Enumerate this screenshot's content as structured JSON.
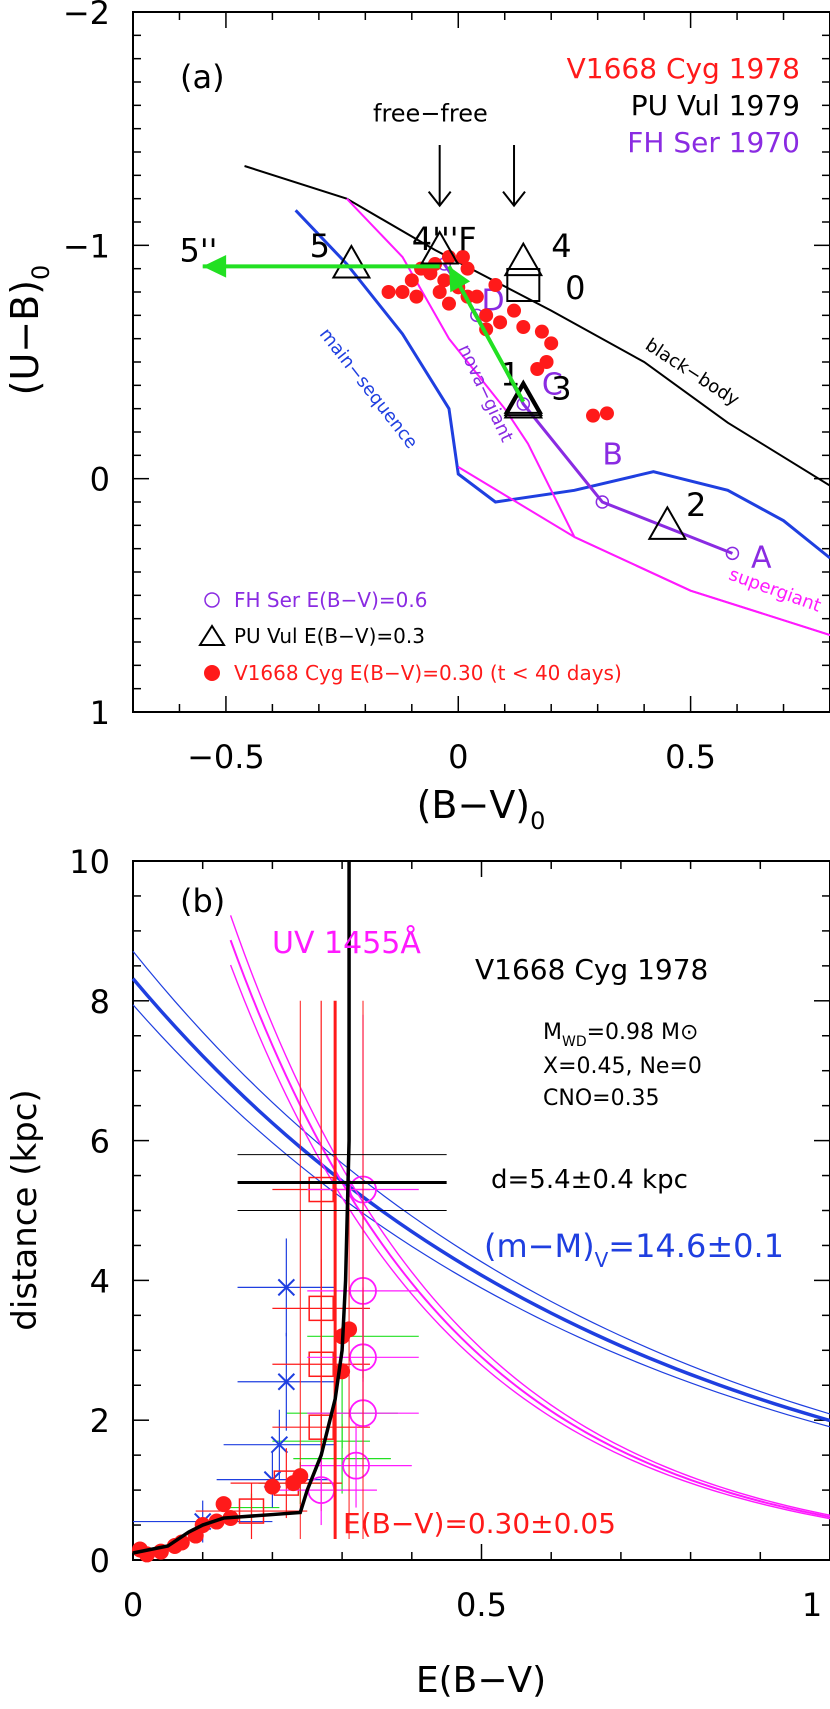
{
  "chart_data": [
    {
      "panel": "(a)",
      "type": "scatter",
      "xlabel": "(B−V)",
      "xlabel_sub": "0",
      "ylabel": "(U−B)",
      "ylabel_sub": "0",
      "xlim": [
        -0.7,
        0.8
      ],
      "ylim": [
        1,
        -2
      ],
      "xticks": [
        -0.5,
        0,
        0.5
      ],
      "xtick_labels": [
        "−0.5",
        "0",
        "0.5"
      ],
      "yticks": [
        -2,
        -1,
        0,
        1
      ],
      "ytick_labels": [
        "−2",
        "−1",
        "0",
        "1"
      ],
      "titles": [
        {
          "text": "V1668 Cyg 1978",
          "color": "#ff1a1a"
        },
        {
          "text": "PU Vul 1979",
          "color": "#000000"
        },
        {
          "text": "FH Ser 1970",
          "color": "#8a2be2"
        }
      ],
      "curves": [
        {
          "label": "black−body",
          "color": "#000000",
          "points": [
            [
              -0.46,
              -1.34
            ],
            [
              -0.24,
              -1.2
            ],
            [
              -0.05,
              -0.98
            ],
            [
              0.2,
              -0.72
            ],
            [
              0.4,
              -0.5
            ],
            [
              0.58,
              -0.24
            ],
            [
              0.8,
              0.03
            ]
          ]
        },
        {
          "label": "main−sequence",
          "color": "#1f3fe0",
          "points": [
            [
              -0.35,
              -1.15
            ],
            [
              -0.24,
              -0.92
            ],
            [
              -0.12,
              -0.62
            ],
            [
              -0.02,
              -0.3
            ],
            [
              0.0,
              -0.02
            ],
            [
              0.08,
              0.1
            ],
            [
              0.25,
              0.05
            ],
            [
              0.42,
              -0.03
            ],
            [
              0.58,
              0.05
            ],
            [
              0.7,
              0.18
            ],
            [
              0.8,
              0.34
            ]
          ]
        },
        {
          "label": "nova−giant",
          "color": "#ff1aff",
          "points": [
            [
              -0.24,
              -1.2
            ],
            [
              -0.12,
              -0.95
            ],
            [
              -0.02,
              -0.6
            ],
            [
              0.1,
              -0.3
            ],
            [
              0.15,
              -0.15
            ],
            [
              0.25,
              0.25
            ],
            [
              0.5,
              0.48
            ],
            [
              0.8,
              0.67
            ]
          ]
        },
        {
          "label": "supergiant",
          "color": "#ff1aff",
          "points": []
        }
      ],
      "fh_ser": {
        "name": "FH Ser E(B−V)=0.6",
        "color": "#8a2be2",
        "points": [
          [
            -0.03,
            -0.92
          ],
          [
            0.0,
            -0.83
          ],
          [
            0.04,
            -0.7
          ],
          [
            0.14,
            -0.32
          ],
          [
            0.31,
            0.1
          ],
          [
            0.59,
            0.32
          ]
        ],
        "labels": [
          {
            "text": "D",
            "x": 0.05,
            "y": -0.72
          },
          {
            "text": "C",
            "x": 0.18,
            "y": -0.36
          },
          {
            "text": "B",
            "x": 0.31,
            "y": -0.06
          },
          {
            "text": "A",
            "x": 0.63,
            "y": 0.38
          }
        ]
      },
      "pu_vul": {
        "name": "PU Vul E(B−V)=0.3",
        "color": "#000000",
        "points": [
          [
            -0.23,
            -0.92
          ],
          [
            -0.04,
            -0.98
          ],
          [
            0.14,
            -0.93
          ],
          [
            0.14,
            -0.34
          ],
          [
            0.14,
            -0.33
          ],
          [
            0.14,
            -0.32
          ],
          [
            0.45,
            0.2
          ]
        ],
        "labels": [
          {
            "text": "5",
            "x": -0.32,
            "y": -0.95
          },
          {
            "text": "4'''",
            "x": -0.1,
            "y": -0.98
          },
          {
            "text": "F",
            "x": 0.0,
            "y": -0.98
          },
          {
            "text": "4",
            "x": 0.2,
            "y": -0.95
          },
          {
            "text": "0",
            "x": 0.23,
            "y": -0.77
          },
          {
            "text": "1",
            "x": 0.09,
            "y": -0.4
          },
          {
            "text": "3",
            "x": 0.2,
            "y": -0.34
          },
          {
            "text": "2",
            "x": 0.49,
            "y": 0.16
          },
          {
            "text": "5''",
            "x": -0.6,
            "y": -0.93
          }
        ]
      },
      "v1668_cyg": {
        "name": "V1668 Cyg E(B−V)=0.30 (t < 40 days)",
        "color": "#ff1a1a",
        "points": [
          [
            -0.02,
            -0.95
          ],
          [
            0.01,
            -0.95
          ],
          [
            -0.05,
            -0.92
          ],
          [
            -0.08,
            -0.9
          ],
          [
            -0.12,
            -0.8
          ],
          [
            -0.15,
            -0.8
          ],
          [
            -0.1,
            -0.85
          ],
          [
            -0.06,
            -0.88
          ],
          [
            -0.03,
            -0.85
          ],
          [
            0.0,
            -0.82
          ],
          [
            -0.04,
            -0.8
          ],
          [
            0.02,
            -0.78
          ],
          [
            -0.02,
            -0.75
          ],
          [
            0.04,
            -0.78
          ],
          [
            0.08,
            -0.83
          ],
          [
            0.06,
            -0.7
          ],
          [
            0.09,
            -0.67
          ],
          [
            0.12,
            -0.72
          ],
          [
            0.14,
            -0.65
          ],
          [
            0.02,
            -0.9
          ],
          [
            0.2,
            -0.58
          ],
          [
            0.19,
            -0.5
          ],
          [
            0.17,
            -0.47
          ],
          [
            0.29,
            -0.27
          ],
          [
            0.32,
            -0.28
          ],
          [
            0.18,
            -0.63
          ],
          [
            0.06,
            -0.64
          ],
          [
            -0.09,
            -0.78
          ]
        ]
      },
      "annotations": [
        {
          "text": "free−free",
          "x": -0.06,
          "y": -1.53,
          "color": "#000000"
        }
      ],
      "arrows_free_free": [
        -0.04,
        0.12
      ],
      "green_arrows": [
        {
          "from": [
            0.14,
            -0.33
          ],
          "to": [
            -0.02,
            -0.91
          ]
        },
        {
          "from": [
            -0.04,
            -0.91
          ],
          "to": [
            -0.55,
            -0.91
          ]
        }
      ],
      "legend_placement": "bottom-left",
      "grid": false
    },
    {
      "panel": "(b)",
      "type": "scatter",
      "xlabel": "E(B−V)",
      "ylabel": "distance  (kpc)",
      "xlim": [
        0,
        1
      ],
      "ylim": [
        0,
        10
      ],
      "xticks": [
        0,
        0.5,
        1
      ],
      "xtick_labels": [
        "0",
        "0.5",
        "1"
      ],
      "yticks": [
        0,
        2,
        4,
        6,
        8,
        10
      ],
      "ytick_labels": [
        "0",
        "2",
        "4",
        "6",
        "8",
        "10"
      ],
      "title": "V1668 Cyg 1978",
      "annotations": [
        {
          "text": "UV 1455Å",
          "color": "#ff1aff"
        },
        {
          "text": "d=5.4±0.4 kpc",
          "color": "#000000"
        },
        {
          "text": "E(B−V)=0.30±0.05",
          "color": "#ff1a1a"
        }
      ],
      "params": {
        "mwd": "M",
        "mwd_sub": "WD",
        "mwd_value": "=0.98 M",
        "mwd_sun": "⊙",
        "composition": "X=0.45, Ne=0",
        "cno": "CNO=0.35"
      },
      "distance_modulus": {
        "label": "(m−M)",
        "label_sub": "V",
        "label_value": "=14.6±0.1",
        "value": 14.6,
        "error": 0.1
      },
      "d_estimate": {
        "e_bv": 0.3,
        "d": 5.4,
        "d_err": 0.4,
        "e_err": 0.15
      },
      "ebv_estimate": {
        "value": 0.3,
        "error": 0.05
      },
      "red_circles": [
        [
          0.01,
          0.15
        ],
        [
          0.02,
          0.08
        ],
        [
          0.04,
          0.12
        ],
        [
          0.06,
          0.2
        ],
        [
          0.07,
          0.25
        ],
        [
          0.09,
          0.35
        ],
        [
          0.1,
          0.5
        ],
        [
          0.12,
          0.55
        ],
        [
          0.14,
          0.6
        ],
        [
          0.13,
          0.8
        ],
        [
          0.2,
          1.05
        ],
        [
          0.23,
          1.1
        ],
        [
          0.24,
          1.2
        ],
        [
          0.3,
          2.7
        ],
        [
          0.31,
          3.3
        ],
        [
          0.3,
          3.2
        ]
      ],
      "black_curve": [
        [
          0.0,
          0.1
        ],
        [
          0.05,
          0.2
        ],
        [
          0.08,
          0.4
        ],
        [
          0.1,
          0.5
        ],
        [
          0.13,
          0.6
        ],
        [
          0.2,
          0.65
        ],
        [
          0.24,
          0.68
        ],
        [
          0.25,
          1.0
        ],
        [
          0.27,
          1.5
        ],
        [
          0.28,
          1.9
        ],
        [
          0.29,
          2.3
        ],
        [
          0.3,
          3.0
        ],
        [
          0.305,
          4.0
        ],
        [
          0.31,
          6.0
        ],
        [
          0.31,
          8.0
        ],
        [
          0.31,
          10.0
        ]
      ],
      "green_crosses": [
        [
          0.17,
          0.75,
          0.04,
          0.2
        ],
        [
          0.24,
          1.1,
          0.06,
          0.3
        ],
        [
          0.27,
          1.7,
          0.07,
          0.4
        ],
        [
          0.3,
          2.1,
          0.08,
          0.5
        ],
        [
          0.33,
          3.2,
          0.08,
          0.6
        ],
        [
          0.3,
          1.45,
          0.07,
          0.5
        ]
      ],
      "blue_xs": [
        [
          0.1,
          0.55,
          0.1,
          0.3
        ],
        [
          0.2,
          1.15,
          0.08,
          0.4
        ],
        [
          0.21,
          1.65,
          0.08,
          0.5
        ],
        [
          0.22,
          2.55,
          0.07,
          0.7
        ],
        [
          0.22,
          3.9,
          0.07,
          0.7
        ]
      ],
      "red_squares": [
        [
          0.17,
          0.7,
          0.08,
          0.4
        ],
        [
          0.22,
          1.1,
          0.08,
          0.5
        ],
        [
          0.27,
          1.9,
          0.07,
          1.2
        ],
        [
          0.27,
          2.8,
          0.07,
          1.5
        ],
        [
          0.27,
          3.6,
          0.07,
          2.0
        ],
        [
          0.27,
          5.3,
          0.07,
          2.7
        ]
      ],
      "magenta_circles": [
        [
          0.27,
          1.0,
          0.08,
          0.5
        ],
        [
          0.32,
          1.35,
          0.08,
          0.6
        ],
        [
          0.33,
          2.1,
          0.08,
          0.8
        ],
        [
          0.33,
          2.9,
          0.08,
          1.0
        ],
        [
          0.33,
          3.85,
          0.08,
          1.3
        ],
        [
          0.33,
          5.3,
          0.08,
          2.5
        ]
      ],
      "grid": false
    }
  ]
}
